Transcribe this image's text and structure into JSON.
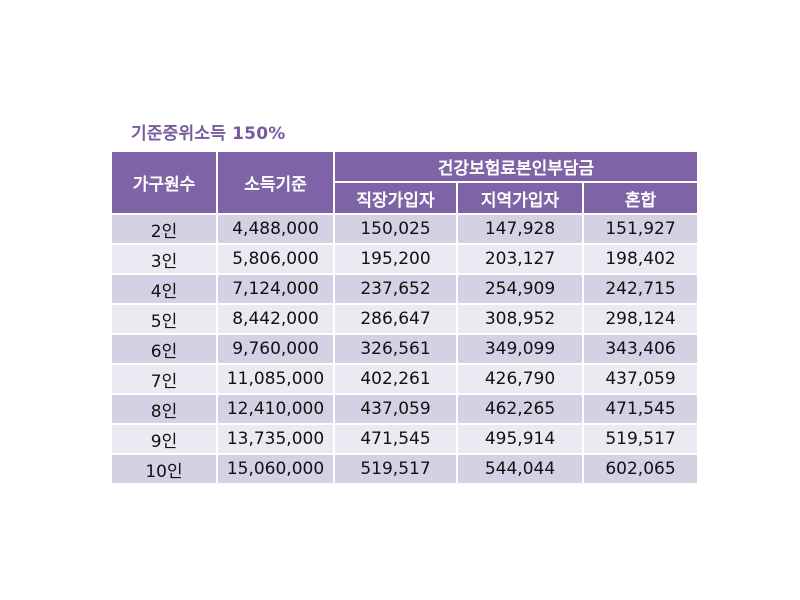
{
  "caption": "기준중위소득 150%",
  "table": {
    "headers": {
      "household": "가구원수",
      "income": "소득기준",
      "premium_group": "건강보험료본인부담금",
      "employee": "직장가입자",
      "regional": "지역가입자",
      "mixed": "혼합"
    },
    "rows": [
      {
        "household": "2인",
        "income": "4,488,000",
        "employee": "150,025",
        "regional": "147,928",
        "mixed": "151,927"
      },
      {
        "household": "3인",
        "income": "5,806,000",
        "employee": "195,200",
        "regional": "203,127",
        "mixed": "198,402"
      },
      {
        "household": "4인",
        "income": "7,124,000",
        "employee": "237,652",
        "regional": "254,909",
        "mixed": "242,715"
      },
      {
        "household": "5인",
        "income": "8,442,000",
        "employee": "286,647",
        "regional": "308,952",
        "mixed": "298,124"
      },
      {
        "household": "6인",
        "income": "9,760,000",
        "employee": "326,561",
        "regional": "349,099",
        "mixed": "343,406"
      },
      {
        "household": "7인",
        "income": "11,085,000",
        "employee": "402,261",
        "regional": "426,790",
        "mixed": "437,059"
      },
      {
        "household": "8인",
        "income": "12,410,000",
        "employee": "437,059",
        "regional": "462,265",
        "mixed": "471,545"
      },
      {
        "household": "9인",
        "income": "13,735,000",
        "employee": "471,545",
        "regional": "495,914",
        "mixed": "519,517"
      },
      {
        "household": "10인",
        "income": "15,060,000",
        "employee": "519,517",
        "regional": "544,044",
        "mixed": "602,065"
      }
    ]
  },
  "colors": {
    "header_bg": "#7e64a6",
    "caption": "#7a5a9e",
    "row_odd": "#d5d0e3",
    "row_even": "#ebe9f2"
  }
}
